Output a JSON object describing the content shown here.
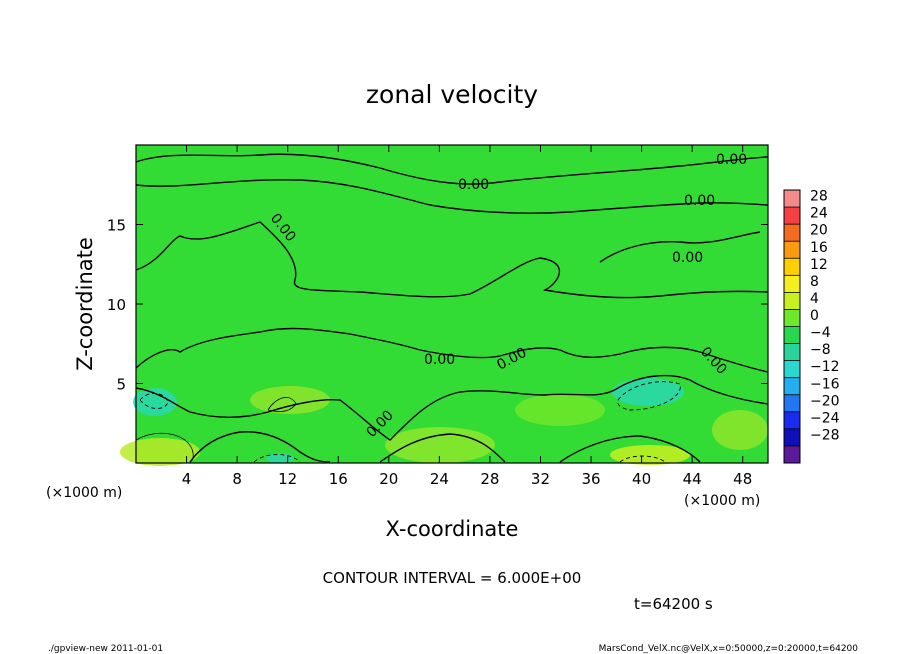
{
  "chart_data": {
    "type": "heatmap",
    "title": "zonal velocity",
    "xlabel": "X-coordinate",
    "ylabel": "Z-coordinate",
    "x_unit_left": "(×1000 m)",
    "x_unit_right": "(×1000 m)",
    "x_ticks": [
      4,
      8,
      12,
      16,
      20,
      24,
      28,
      32,
      36,
      40,
      44,
      48
    ],
    "y_ticks": [
      5,
      10,
      15
    ],
    "xlim": [
      0,
      50
    ],
    "ylim": [
      0,
      20
    ],
    "contour_label": "0.00",
    "colorbar": {
      "labels": [
        "28",
        "24",
        "20",
        "16",
        "12",
        "8",
        "4",
        "0",
        "−4",
        "−8",
        "−12",
        "−16",
        "−20",
        "−24",
        "−28"
      ],
      "colors": [
        "#f48a8a",
        "#f44040",
        "#f46a1e",
        "#fa9a10",
        "#ffd000",
        "#f4f020",
        "#c8f020",
        "#6ee82a",
        "#27d84e",
        "#28d49a",
        "#2ad8d0",
        "#23aef0",
        "#2276f0",
        "#1a2cf0",
        "#1010b8",
        "#5a1a9a"
      ]
    },
    "contour_interval_text": "CONTOUR INTERVAL = 6.000E+00",
    "time_text": "t=64200 s"
  },
  "footer": {
    "left": "./gpview-new  2011-01-01",
    "right": "MarsCond_VelX.nc@VelX,x=0:50000,z=0:20000,t=64200"
  }
}
